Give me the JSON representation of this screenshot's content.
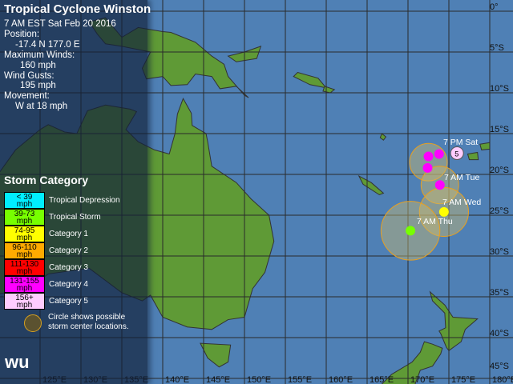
{
  "header": {
    "title": "Tropical Cyclone Winston",
    "time": "7 AM EST Sat Feb 20 2016",
    "position_label": "Position:",
    "position_value": "-17.4 N 177.0 E",
    "max_winds_label": "Maximum Winds:",
    "max_winds_value": "160 mph",
    "gusts_label": "Wind Gusts:",
    "gusts_value": "195 mph",
    "movement_label": "Movement:",
    "movement_value": "W at 18 mph"
  },
  "legend": {
    "title": "Storm Category",
    "items": [
      {
        "range": "< 39",
        "unit": "mph",
        "label": "Tropical Depression",
        "color": "#00eeff"
      },
      {
        "range": "39-73",
        "unit": "mph",
        "label": "Tropical Storm",
        "color": "#77ff00"
      },
      {
        "range": "74-95",
        "unit": "mph",
        "label": "Category 1",
        "color": "#ffff00"
      },
      {
        "range": "96-110",
        "unit": "mph",
        "label": "Category 2",
        "color": "#ffaa00"
      },
      {
        "range": "111-130",
        "unit": "mph",
        "label": "Category 3",
        "color": "#ff0000"
      },
      {
        "range": "131-155",
        "unit": "mph",
        "label": "Category 4",
        "color": "#ff00ff"
      },
      {
        "range": "156+",
        "unit": "mph",
        "label": "Category 5",
        "color": "#ffccff"
      }
    ],
    "circle_note": "Circle shows possible storm center locations."
  },
  "logo": "wu",
  "axes": {
    "lon_labels": [
      "125°E",
      "130°E",
      "135°E",
      "140°E",
      "145°E",
      "150°E",
      "155°E",
      "160°E",
      "165°E",
      "170°E",
      "175°E",
      "180°E"
    ],
    "lat_labels": [
      "0°",
      "5°S",
      "10°S",
      "15°S",
      "20°S",
      "25°S",
      "30°S",
      "35°S",
      "40°S",
      "45°S"
    ]
  },
  "forecast": {
    "current_category": "5",
    "labels": [
      "7 PM Sat",
      "7 AM Tue",
      "7 AM Wed",
      "7 AM Thu"
    ],
    "points": [
      {
        "lon": 176.0,
        "lat": -17.4,
        "category": "5",
        "color": "#ffccff"
      },
      {
        "lon": 173.8,
        "lat": -17.5,
        "category": "4",
        "color": "#ff00ff"
      },
      {
        "lon": 172.5,
        "lat": -17.8,
        "category": "4",
        "color": "#ff00ff"
      },
      {
        "lon": 172.4,
        "lat": -19.2,
        "category": "4",
        "color": "#ff00ff"
      },
      {
        "lon": 173.9,
        "lat": -21.3,
        "category": "4",
        "color": "#ff00ff"
      },
      {
        "lon": 174.4,
        "lat": -24.6,
        "category": "1",
        "color": "#ffff00"
      },
      {
        "lon": 170.3,
        "lat": -26.9,
        "category": "TS",
        "color": "#77ff00"
      }
    ]
  },
  "colors": {
    "sea": "#4f80b5",
    "land": "#5f9a36",
    "cone": "#c8b870"
  }
}
